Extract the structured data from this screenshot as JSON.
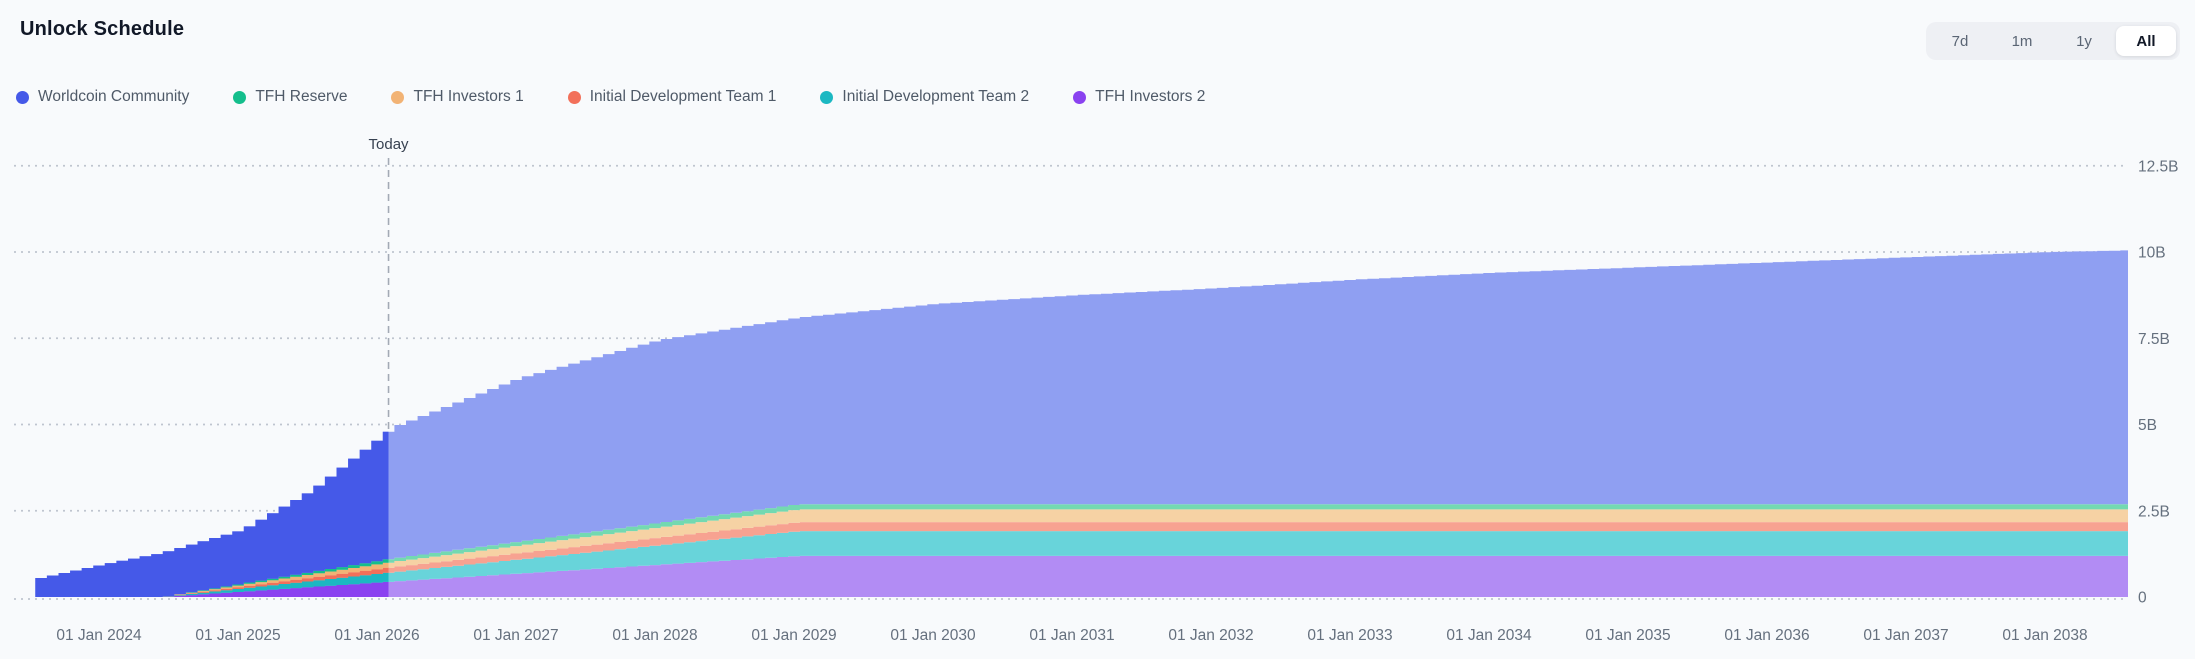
{
  "header": {
    "title": "Unlock Schedule",
    "range_buttons": [
      {
        "label": "7d",
        "active": false
      },
      {
        "label": "1m",
        "active": false
      },
      {
        "label": "1y",
        "active": false
      },
      {
        "label": "All",
        "active": true
      }
    ]
  },
  "chart_data": {
    "type": "area",
    "stacked": true,
    "title": "Unlock Schedule",
    "unit": "tokens (billions)",
    "x_start": 2023.542,
    "x_end": 2038.597,
    "today_x": 2026.083,
    "today_label": "Today",
    "step_interval_months": 1,
    "grid": "dotted-horizontal",
    "legend_position": "top-left",
    "y_axis_side": "right",
    "y_ticks": [
      {
        "value": 0,
        "label": "0"
      },
      {
        "value": 2.5,
        "label": "2.5B"
      },
      {
        "value": 5,
        "label": "5B"
      },
      {
        "value": 7.5,
        "label": "7.5B"
      },
      {
        "value": 10,
        "label": "10B"
      },
      {
        "value": 12.5,
        "label": "12.5B"
      }
    ],
    "x_ticks": [
      {
        "year": 2024,
        "label": "01 Jan 2024"
      },
      {
        "year": 2025,
        "label": "01 Jan 2025"
      },
      {
        "year": 2026,
        "label": "01 Jan 2026"
      },
      {
        "year": 2027,
        "label": "01 Jan 2027"
      },
      {
        "year": 2028,
        "label": "01 Jan 2028"
      },
      {
        "year": 2029,
        "label": "01 Jan 2029"
      },
      {
        "year": 2030,
        "label": "01 Jan 2030"
      },
      {
        "year": 2031,
        "label": "01 Jan 2031"
      },
      {
        "year": 2032,
        "label": "01 Jan 2032"
      },
      {
        "year": 2033,
        "label": "01 Jan 2033"
      },
      {
        "year": 2034,
        "label": "01 Jan 2034"
      },
      {
        "year": 2035,
        "label": "01 Jan 2035"
      },
      {
        "year": 2036,
        "label": "01 Jan 2036"
      },
      {
        "year": 2037,
        "label": "01 Jan 2037"
      },
      {
        "year": 2038,
        "label": "01 Jan 2038"
      }
    ],
    "colors": {
      "gridline": "#BFC5CF",
      "today_line": "#A3AAB5",
      "axis_text": "#65707E"
    },
    "series": [
      {
        "name": "Worldcoin Community",
        "color_past": "#4559E8",
        "color_future": "#8F9FF2",
        "breakpoints": [
          [
            2023.542,
            0.55
          ],
          [
            2024.0,
            0.95
          ],
          [
            2024.42,
            1.28
          ],
          [
            2025.0,
            1.56
          ],
          [
            2025.5,
            2.37
          ],
          [
            2026.083,
            3.8
          ],
          [
            2027.0,
            4.74
          ],
          [
            2028.0,
            5.3
          ],
          [
            2029.0,
            5.41
          ],
          [
            2030.0,
            5.81
          ],
          [
            2031.0,
            6.06
          ],
          [
            2032.0,
            6.26
          ],
          [
            2033.0,
            6.51
          ],
          [
            2034.0,
            6.71
          ],
          [
            2035.0,
            6.86
          ],
          [
            2036.0,
            7.01
          ],
          [
            2037.0,
            7.16
          ],
          [
            2038.0,
            7.31
          ],
          [
            2038.597,
            7.36
          ]
        ]
      },
      {
        "name": "TFH Reserve",
        "color_past": "#14BE8C",
        "color_future": "#73D9B1",
        "breakpoints": [
          [
            2024.42,
            0
          ],
          [
            2026.083,
            0.1
          ],
          [
            2029.0,
            0.15
          ],
          [
            2038.597,
            0.15
          ]
        ]
      },
      {
        "name": "TFH Investors 1",
        "color_past": "#F2B375",
        "color_future": "#F6D2A4",
        "breakpoints": [
          [
            2024.42,
            0
          ],
          [
            2026.083,
            0.15
          ],
          [
            2029.0,
            0.37
          ],
          [
            2038.597,
            0.37
          ]
        ]
      },
      {
        "name": "Initial Development Team 1",
        "color_past": "#F2705A",
        "color_future": "#F7A291",
        "breakpoints": [
          [
            2024.42,
            0
          ],
          [
            2026.083,
            0.15
          ],
          [
            2029.0,
            0.26
          ],
          [
            2038.597,
            0.26
          ]
        ]
      },
      {
        "name": "Initial Development Team 2",
        "color_past": "#1CB8C2",
        "color_future": "#68D4DA",
        "breakpoints": [
          [
            2024.42,
            0
          ],
          [
            2026.083,
            0.27
          ],
          [
            2029.0,
            0.72
          ],
          [
            2038.597,
            0.72
          ]
        ]
      },
      {
        "name": "TFH Investors 2",
        "color_past": "#8A42F0",
        "color_future": "#B28CF4",
        "breakpoints": [
          [
            2024.42,
            0
          ],
          [
            2026.083,
            0.45
          ],
          [
            2029.0,
            1.19
          ],
          [
            2038.597,
            1.19
          ]
        ]
      }
    ],
    "stack_bottom_up": [
      "TFH Investors 2",
      "Initial Development Team 2",
      "Initial Development Team 1",
      "TFH Investors 1",
      "TFH Reserve",
      "Worldcoin Community"
    ]
  }
}
